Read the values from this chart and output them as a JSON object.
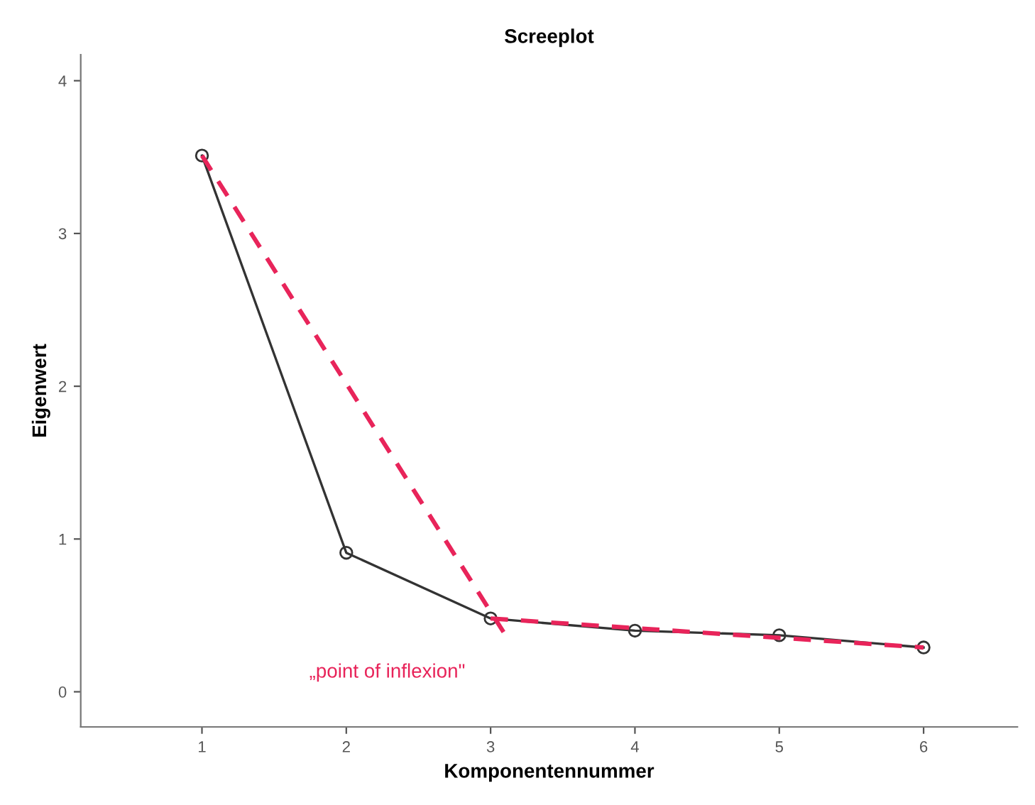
{
  "chart_data": {
    "type": "line",
    "title": "Screeplot",
    "xlabel": "Komponentennummer",
    "ylabel": "Eigenwert",
    "x": [
      1,
      2,
      3,
      4,
      5,
      6
    ],
    "series": [
      {
        "color": "#333333",
        "values": [
          3.51,
          0.91,
          0.48,
          0.4,
          0.37,
          0.29
        ],
        "marker": "circle",
        "line_style": "solid"
      },
      {
        "type": "line",
        "color": "#e8245a",
        "x": [
          1,
          3.09
        ],
        "values": [
          3.51,
          0.39
        ],
        "marker": "none",
        "line_style": "dashed"
      },
      {
        "type": "line",
        "color": "#e8245a",
        "x": [
          3,
          6
        ],
        "values": [
          0.48,
          0.29
        ],
        "marker": "none",
        "line_style": "dashed"
      }
    ],
    "annotations": [
      {
        "text": "„point of inflexion\"",
        "x": 3,
        "y": 0.48
      }
    ],
    "xlim": [
      0.16,
      6.65
    ],
    "xticks": [
      1,
      2,
      3,
      4,
      5,
      6
    ],
    "ylim": [
      -0.23,
      4.17
    ],
    "yticks": [
      0,
      1,
      2,
      3,
      4
    ],
    "grid": false,
    "legend": false
  }
}
